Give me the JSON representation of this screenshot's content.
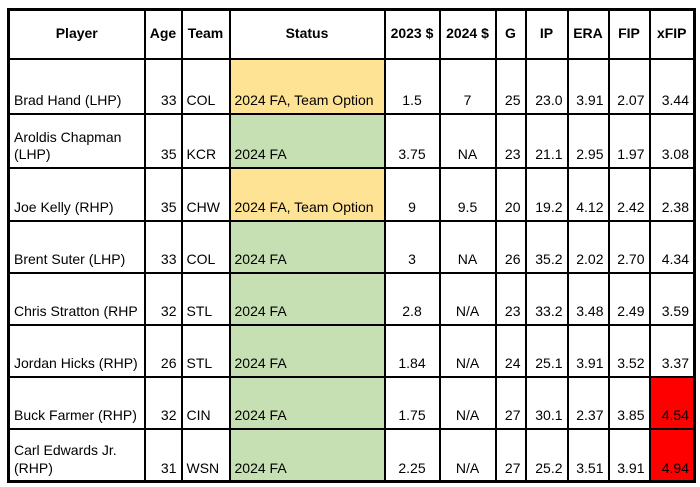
{
  "colors": {
    "status_yellow": "#FFE394",
    "status_green": "#C6E0B4",
    "alert_red": "#FF0000",
    "border_black": "#000000",
    "background_white": "#FFFFFF",
    "text_black": "#000000"
  },
  "table": {
    "columns": [
      {
        "key": "player",
        "label": "Player"
      },
      {
        "key": "age",
        "label": "Age"
      },
      {
        "key": "team",
        "label": "Team"
      },
      {
        "key": "status",
        "label": "Status"
      },
      {
        "key": "y2023",
        "label": "2023 $"
      },
      {
        "key": "y2024",
        "label": "2024 $"
      },
      {
        "key": "g",
        "label": "G"
      },
      {
        "key": "ip",
        "label": "IP"
      },
      {
        "key": "era",
        "label": "ERA"
      },
      {
        "key": "fip",
        "label": "FIP"
      },
      {
        "key": "xfip",
        "label": "xFIP"
      }
    ],
    "rows": [
      {
        "player": "Brad Hand (LHP)",
        "age": "33",
        "team": "COL",
        "status": "2024 FA, Team Option",
        "status_fill": "status_yellow",
        "y2023": "1.5",
        "y2024": "7",
        "g": "25",
        "ip": "23.0",
        "era": "3.91",
        "fip": "2.07",
        "xfip": "3.44",
        "xfip_fill": null
      },
      {
        "player": "Aroldis Chapman (LHP)",
        "age": "35",
        "team": "KCR",
        "status": "2024 FA",
        "status_fill": "status_green",
        "y2023": "3.75",
        "y2024": "NA",
        "g": "23",
        "ip": "21.1",
        "era": "2.95",
        "fip": "1.97",
        "xfip": "3.08",
        "xfip_fill": null
      },
      {
        "player": "Joe Kelly (RHP)",
        "age": "35",
        "team": "CHW",
        "status": "2024 FA, Team Option",
        "status_fill": "status_yellow",
        "y2023": "9",
        "y2024": "9.5",
        "g": "20",
        "ip": "19.2",
        "era": "4.12",
        "fip": "2.42",
        "xfip": "2.38",
        "xfip_fill": null
      },
      {
        "player": "Brent Suter (LHP)",
        "age": "33",
        "team": "COL",
        "status": "2024 FA",
        "status_fill": "status_green",
        "y2023": "3",
        "y2024": "NA",
        "g": "26",
        "ip": "35.2",
        "era": "2.02",
        "fip": "2.70",
        "xfip": "4.34",
        "xfip_fill": null
      },
      {
        "player": "Chris Stratton (RHP",
        "age": "32",
        "team": "STL",
        "status": "2024 FA",
        "status_fill": "status_green",
        "y2023": "2.8",
        "y2024": "N/A",
        "g": "23",
        "ip": "33.2",
        "era": "3.48",
        "fip": "2.49",
        "xfip": "3.59",
        "xfip_fill": null
      },
      {
        "player": "Jordan Hicks (RHP)",
        "age": "26",
        "team": "STL",
        "status": "2024 FA",
        "status_fill": "status_green",
        "y2023": "1.84",
        "y2024": "N/A",
        "g": "24",
        "ip": "25.1",
        "era": "3.91",
        "fip": "3.52",
        "xfip": "3.37",
        "xfip_fill": null
      },
      {
        "player": "Buck Farmer (RHP)",
        "age": "32",
        "team": "CIN",
        "status": "2024 FA",
        "status_fill": "status_green",
        "y2023": "1.75",
        "y2024": "N/A",
        "g": "27",
        "ip": "30.1",
        "era": "2.37",
        "fip": "3.85",
        "xfip": "4.54",
        "xfip_fill": "alert_red"
      },
      {
        "player": "Carl Edwards Jr. (RHP)",
        "age": "31",
        "team": "WSN",
        "status": "2024 FA",
        "status_fill": "status_green",
        "y2023": "2.25",
        "y2024": "N/A",
        "g": "27",
        "ip": "25.2",
        "era": "3.51",
        "fip": "3.91",
        "xfip": "4.94",
        "xfip_fill": "alert_red"
      }
    ]
  },
  "chart_data": {
    "type": "table",
    "title": "",
    "columns": [
      "Player",
      "Age",
      "Team",
      "Status",
      "2023 $",
      "2024 $",
      "G",
      "IP",
      "ERA",
      "FIP",
      "xFIP"
    ],
    "rows": [
      [
        "Brad Hand (LHP)",
        33,
        "COL",
        "2024 FA, Team Option",
        1.5,
        7,
        25,
        23.0,
        3.91,
        2.07,
        3.44
      ],
      [
        "Aroldis Chapman (LHP)",
        35,
        "KCR",
        "2024 FA",
        3.75,
        "NA",
        23,
        21.1,
        2.95,
        1.97,
        3.08
      ],
      [
        "Joe Kelly (RHP)",
        35,
        "CHW",
        "2024 FA, Team Option",
        9,
        9.5,
        20,
        19.2,
        4.12,
        2.42,
        2.38
      ],
      [
        "Brent Suter (LHP)",
        33,
        "COL",
        "2024 FA",
        3,
        "NA",
        26,
        35.2,
        2.02,
        2.7,
        4.34
      ],
      [
        "Chris Stratton (RHP",
        32,
        "STL",
        "2024 FA",
        2.8,
        "N/A",
        23,
        33.2,
        3.48,
        2.49,
        3.59
      ],
      [
        "Jordan Hicks (RHP)",
        26,
        "STL",
        "2024 FA",
        1.84,
        "N/A",
        24,
        25.1,
        3.91,
        3.52,
        3.37
      ],
      [
        "Buck Farmer (RHP)",
        32,
        "CIN",
        "2024 FA",
        1.75,
        "N/A",
        27,
        30.1,
        2.37,
        3.85,
        4.54
      ],
      [
        "Carl Edwards Jr. (RHP)",
        31,
        "WSN",
        "2024 FA",
        2.25,
        "N/A",
        27,
        25.2,
        3.51,
        3.91,
        4.94
      ]
    ],
    "cell_fills": {
      "status_yellow_rows": [
        0,
        2
      ],
      "status_green_rows": [
        1,
        3,
        4,
        5,
        6,
        7
      ],
      "xfip_red_rows": [
        6,
        7
      ]
    },
    "layout_hints": {
      "header_bold": true,
      "thick_black_borders": true,
      "data_vertical_align": "bottom"
    }
  }
}
